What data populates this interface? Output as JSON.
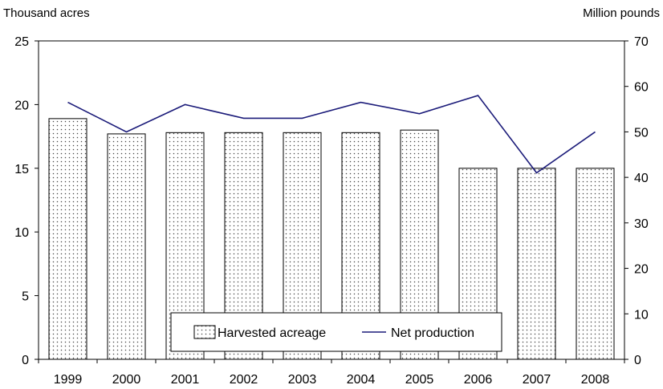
{
  "chart_data": {
    "type": "bar",
    "title": "",
    "xlabel": "",
    "ylabel": "Thousand acres",
    "y2label": "Million pounds",
    "categories": [
      "1999",
      "2000",
      "2001",
      "2002",
      "2003",
      "2004",
      "2005",
      "2006",
      "2007",
      "2008"
    ],
    "ylim": [
      0,
      25
    ],
    "y2lim": [
      0,
      70
    ],
    "yticks": [
      0,
      5,
      10,
      15,
      20,
      25
    ],
    "y2ticks": [
      0,
      10,
      20,
      30,
      40,
      50,
      60,
      70
    ],
    "grid": false,
    "legend_position": "bottom-center",
    "series": [
      {
        "name": "Harvested acreage",
        "type": "bar",
        "axis": "left",
        "pattern": "dotted",
        "values": [
          18.9,
          17.7,
          17.8,
          17.8,
          17.8,
          17.8,
          18.0,
          15.0,
          15.0,
          15.0
        ]
      },
      {
        "name": "Net production",
        "type": "line",
        "axis": "right",
        "color": "#1c1c7a",
        "values": [
          56.5,
          50.0,
          56.0,
          53.0,
          53.0,
          56.5,
          54.0,
          58.0,
          41.0,
          50.0
        ]
      }
    ]
  }
}
